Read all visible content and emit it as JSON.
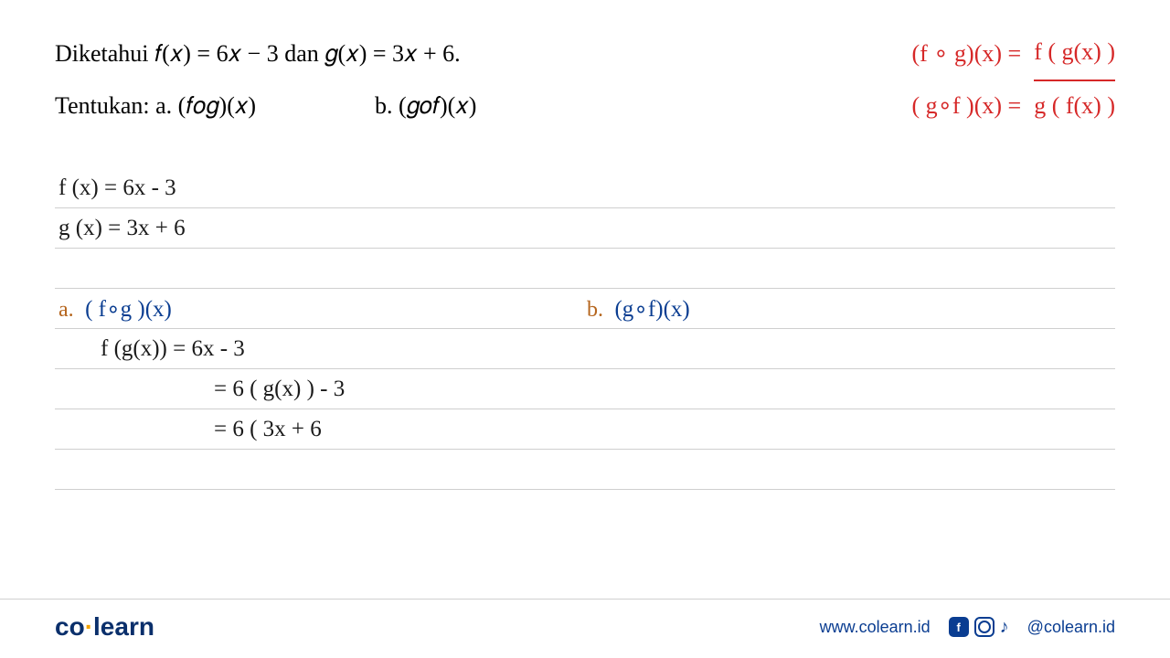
{
  "problem": {
    "line1": "Diketahui 𝑓(𝑥) = 6𝑥 − 3 dan 𝑔(𝑥) = 3𝑥 + 6.",
    "line2_prefix": "Tentukan:",
    "part_a": "a. (𝑓𝑜𝑔)(𝑥)",
    "part_b": "b. (𝑔𝑜𝑓)(𝑥)"
  },
  "red_notes": {
    "row1_left": "(f ∘ g)(x) =",
    "row1_right": "f ( g(x) )",
    "row2_left": "( g∘f )(x) =",
    "row2_right": "g ( f(x) )"
  },
  "given": {
    "fx": "f (x) = 6x - 3",
    "gx": "g (x) = 3x + 6"
  },
  "solution_a": {
    "label": "a.",
    "title": "( f∘g )(x)",
    "step1": "f (g(x)) = 6x - 3",
    "step2": "= 6 ( g(x) ) - 3",
    "step3": "= 6 ( 3x + 6"
  },
  "solution_b": {
    "label": "b.",
    "title": "(g∘f)(x)"
  },
  "footer": {
    "logo_co": "co",
    "logo_dot": "·",
    "logo_learn": "learn",
    "url": "www.colearn.id",
    "handle": "@colearn.id"
  },
  "colors": {
    "text_black": "#000000",
    "hand_black": "#1a1a1a",
    "hand_red": "#d62828",
    "hand_blue": "#0a3d91",
    "part_label": "#b5651d",
    "rule_line": "#cfcfcf",
    "brand_blue": "#0a2f6b",
    "brand_accent": "#f4a300",
    "background": "#ffffff"
  },
  "typography": {
    "problem_fontsize": 26,
    "hand_fontsize": 25,
    "logo_fontsize": 28,
    "footer_fontsize": 18
  }
}
